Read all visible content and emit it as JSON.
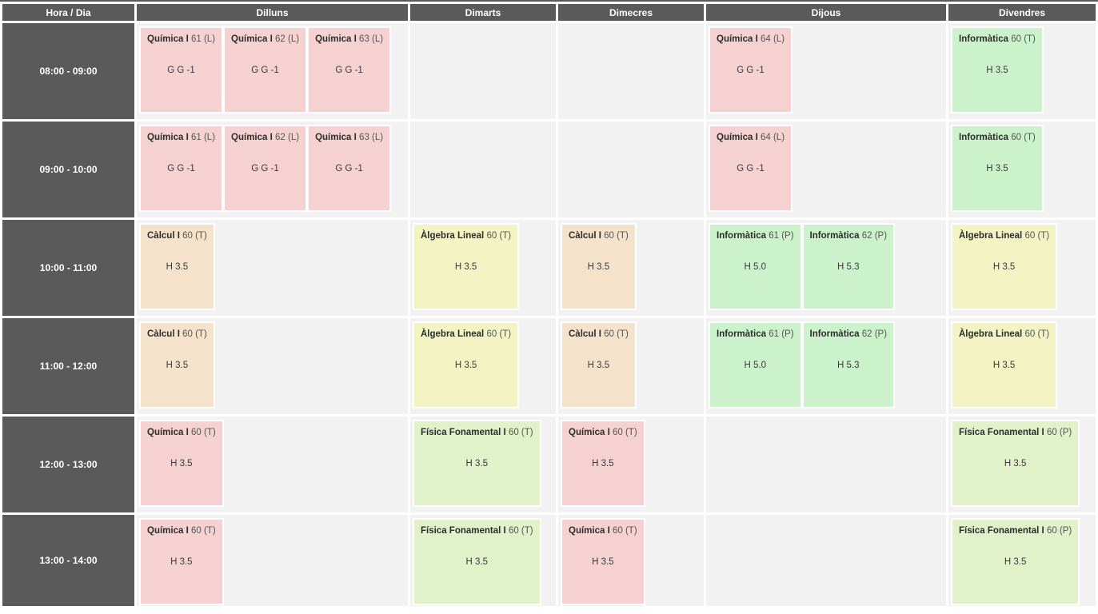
{
  "header": {
    "time_day_label": "Hora / Dia",
    "days": [
      "Dilluns",
      "Dimarts",
      "Dimecres",
      "Dijous",
      "Divendres"
    ]
  },
  "colors": {
    "header_bg": "#5A5A5A",
    "empty_cell_bg": "#F2F2F2",
    "event_types": {
      "pink": "#F5D1D1",
      "peach": "#F5E2CB",
      "yellow": "#F3F3C4",
      "green": "#CCF2CB",
      "lime": "#E1F1CA"
    }
  },
  "rows": [
    {
      "time": "08:00 - 09:00",
      "cells": [
        [
          {
            "title": "Química I",
            "code": "61 (L)",
            "room": "G G -1",
            "color": "pink"
          },
          {
            "title": "Química I",
            "code": "62 (L)",
            "room": "G G -1",
            "color": "pink"
          },
          {
            "title": "Química I",
            "code": "63 (L)",
            "room": "G G -1",
            "color": "pink"
          }
        ],
        [],
        [],
        [
          {
            "title": "Química I",
            "code": "64 (L)",
            "room": "G G -1",
            "color": "pink"
          }
        ],
        [
          {
            "title": "Informàtica",
            "code": "60 (T)",
            "room": "H 3.5",
            "color": "green"
          }
        ]
      ]
    },
    {
      "time": "09:00 - 10:00",
      "cells": [
        [
          {
            "title": "Química I",
            "code": "61 (L)",
            "room": "G G -1",
            "color": "pink"
          },
          {
            "title": "Química I",
            "code": "62 (L)",
            "room": "G G -1",
            "color": "pink"
          },
          {
            "title": "Química I",
            "code": "63 (L)",
            "room": "G G -1",
            "color": "pink"
          }
        ],
        [],
        [],
        [
          {
            "title": "Química I",
            "code": "64 (L)",
            "room": "G G -1",
            "color": "pink"
          }
        ],
        [
          {
            "title": "Informàtica",
            "code": "60 (T)",
            "room": "H 3.5",
            "color": "green"
          }
        ]
      ]
    },
    {
      "time": "10:00 - 11:00",
      "cells": [
        [
          {
            "title": "Càlcul I",
            "code": "60 (T)",
            "room": "H 3.5",
            "color": "peach"
          }
        ],
        [
          {
            "title": "Àlgebra Lineal",
            "code": "60 (T)",
            "room": "H 3.5",
            "color": "yellow"
          }
        ],
        [
          {
            "title": "Càlcul I",
            "code": "60 (T)",
            "room": "H 3.5",
            "color": "peach"
          }
        ],
        [
          {
            "title": "Informàtica",
            "code": "61 (P)",
            "room": "H 5.0",
            "color": "green"
          },
          {
            "title": "Informàtica",
            "code": "62 (P)",
            "room": "H 5.3",
            "color": "green"
          }
        ],
        [
          {
            "title": "Àlgebra Lineal",
            "code": "60 (T)",
            "room": "H 3.5",
            "color": "yellow"
          }
        ]
      ]
    },
    {
      "time": "11:00 - 12:00",
      "cells": [
        [
          {
            "title": "Càlcul I",
            "code": "60 (T)",
            "room": "H 3.5",
            "color": "peach"
          }
        ],
        [
          {
            "title": "Àlgebra Lineal",
            "code": "60 (T)",
            "room": "H 3.5",
            "color": "yellow"
          }
        ],
        [
          {
            "title": "Càlcul I",
            "code": "60 (T)",
            "room": "H 3.5",
            "color": "peach"
          }
        ],
        [
          {
            "title": "Informàtica",
            "code": "61 (P)",
            "room": "H 5.0",
            "color": "green"
          },
          {
            "title": "Informàtica",
            "code": "62 (P)",
            "room": "H 5.3",
            "color": "green"
          }
        ],
        [
          {
            "title": "Àlgebra Lineal",
            "code": "60 (T)",
            "room": "H 3.5",
            "color": "yellow"
          }
        ]
      ]
    },
    {
      "time": "12:00 - 13:00",
      "cells": [
        [
          {
            "title": "Química I",
            "code": "60 (T)",
            "room": "H 3.5",
            "color": "pink"
          }
        ],
        [
          {
            "title": "Física Fonamental I",
            "code": "60 (T)",
            "room": "H 3.5",
            "color": "lime"
          }
        ],
        [
          {
            "title": "Química I",
            "code": "60 (T)",
            "room": "H 3.5",
            "color": "pink"
          }
        ],
        [],
        [
          {
            "title": "Física Fonamental I",
            "code": "60 (P)",
            "room": "H 3.5",
            "color": "lime"
          }
        ]
      ]
    },
    {
      "time": "13:00 - 14:00",
      "cells": [
        [
          {
            "title": "Química I",
            "code": "60 (T)",
            "room": "H 3.5",
            "color": "pink"
          }
        ],
        [
          {
            "title": "Física Fonamental I",
            "code": "60 (T)",
            "room": "H 3.5",
            "color": "lime"
          }
        ],
        [
          {
            "title": "Química I",
            "code": "60 (T)",
            "room": "H 3.5",
            "color": "pink"
          }
        ],
        [],
        [
          {
            "title": "Física Fonamental I",
            "code": "60 (P)",
            "room": "H 3.5",
            "color": "lime"
          }
        ]
      ]
    }
  ]
}
